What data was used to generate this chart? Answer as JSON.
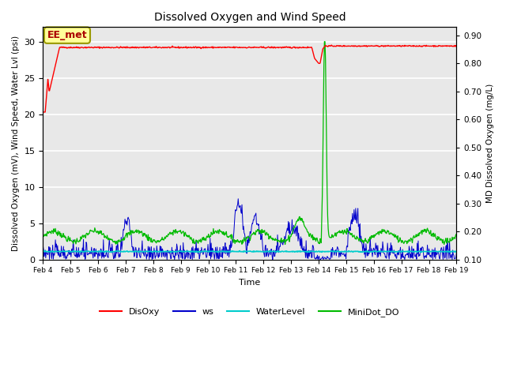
{
  "title": "Dissolved Oxygen and Wind Speed",
  "ylabel_left": "Dissolved Oxygen (mV), Wind Speed, Water Lvl (psi)",
  "ylabel_right": "MD Dissolved Oxygen (mg/L)",
  "xlabel": "Time",
  "ylim_left": [
    0,
    32
  ],
  "ylim_right": [
    0.1,
    0.93
  ],
  "annotation_text": "EE_met",
  "background_color": "#e8e8e8",
  "grid_color": "#ffffff",
  "colors": {
    "DisOxy": "#ff0000",
    "ws": "#0000cc",
    "WaterLevel": "#00cccc",
    "MiniDot_DO": "#00bb00"
  },
  "x_tick_labels": [
    "Feb 4",
    "Feb 5",
    "Feb 6",
    "Feb 7",
    "Feb 8",
    "Feb 9",
    "Feb 10",
    "Feb 11",
    "Feb 12",
    "Feb 13",
    "Feb 14",
    "Feb 15",
    "Feb 16",
    "Feb 17",
    "Feb 18",
    "Feb 19"
  ],
  "yticks_left": [
    0,
    5,
    10,
    15,
    20,
    25,
    30
  ],
  "yticks_right": [
    0.1,
    0.2,
    0.3,
    0.4,
    0.5,
    0.6,
    0.7,
    0.8,
    0.9
  ]
}
